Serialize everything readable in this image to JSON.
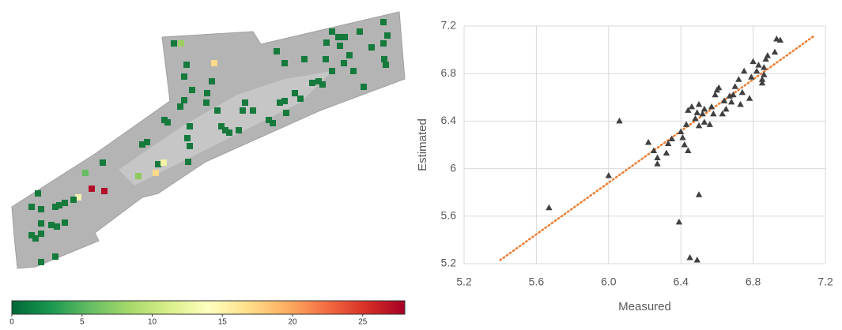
{
  "chart_data": [
    {
      "type": "colorbar",
      "xlim": [
        0,
        28
      ],
      "xticks": [
        0,
        5,
        10,
        15,
        20,
        25
      ],
      "colors": [
        "#006837",
        "#1a9850",
        "#66bd63",
        "#a6d96a",
        "#d9ef8b",
        "#ffffbf",
        "#fee08b",
        "#fdae61",
        "#f46d43",
        "#d73027",
        "#a50026"
      ]
    },
    {
      "type": "scatter",
      "x_label": "Measured",
      "y_label": "Estimated",
      "x": [
        5.67,
        6.0,
        6.06,
        6.22,
        6.25,
        6.27,
        6.27,
        6.32,
        6.33,
        6.35,
        6.39,
        6.4,
        6.41,
        6.42,
        6.44,
        6.43,
        6.44,
        6.46,
        6.48,
        6.49,
        6.5,
        6.5,
        6.5,
        6.52,
        6.53,
        6.53,
        6.56,
        6.57,
        6.58,
        6.59,
        6.6,
        6.61,
        6.63,
        6.64,
        6.65,
        6.67,
        6.68,
        6.69,
        6.7,
        6.72,
        6.73,
        6.74,
        6.75,
        6.78,
        6.79,
        6.8,
        6.82,
        6.83,
        6.85,
        6.87,
        6.86,
        6.88,
        6.85,
        6.86,
        6.93,
        6.95,
        6.92,
        6.45,
        6.49
      ],
      "y": [
        5.67,
        5.94,
        6.4,
        6.22,
        6.15,
        6.09,
        6.04,
        6.13,
        6.21,
        6.25,
        5.55,
        6.31,
        6.26,
        6.2,
        6.15,
        6.37,
        6.49,
        6.52,
        6.42,
        6.47,
        6.36,
        5.78,
        6.54,
        6.46,
        6.39,
        6.5,
        6.37,
        6.52,
        6.46,
        6.62,
        6.66,
        6.68,
        6.46,
        6.57,
        6.5,
        6.61,
        6.56,
        6.62,
        6.69,
        6.75,
        6.54,
        6.64,
        6.82,
        6.59,
        6.77,
        6.9,
        6.82,
        6.87,
        6.72,
        6.92,
        6.85,
        6.95,
        6.75,
        6.79,
        7.09,
        7.08,
        6.98,
        5.25,
        5.23
      ],
      "color": "#404040",
      "trendline": {
        "x": [
          5.4,
          7.14
        ],
        "y": [
          5.23,
          7.12
        ],
        "color": "#ed7d31"
      },
      "xlim": [
        5.2,
        7.2
      ],
      "xticks": [
        5.2,
        5.6,
        {
          "value": 6,
          "label": "6.0"
        },
        6.4,
        6.8,
        7.2
      ],
      "ylim": [
        5.2,
        7.2
      ],
      "yticks": [
        5.2,
        5.6,
        6,
        6.4,
        6.8,
        7.2
      ],
      "grid": true
    }
  ]
}
